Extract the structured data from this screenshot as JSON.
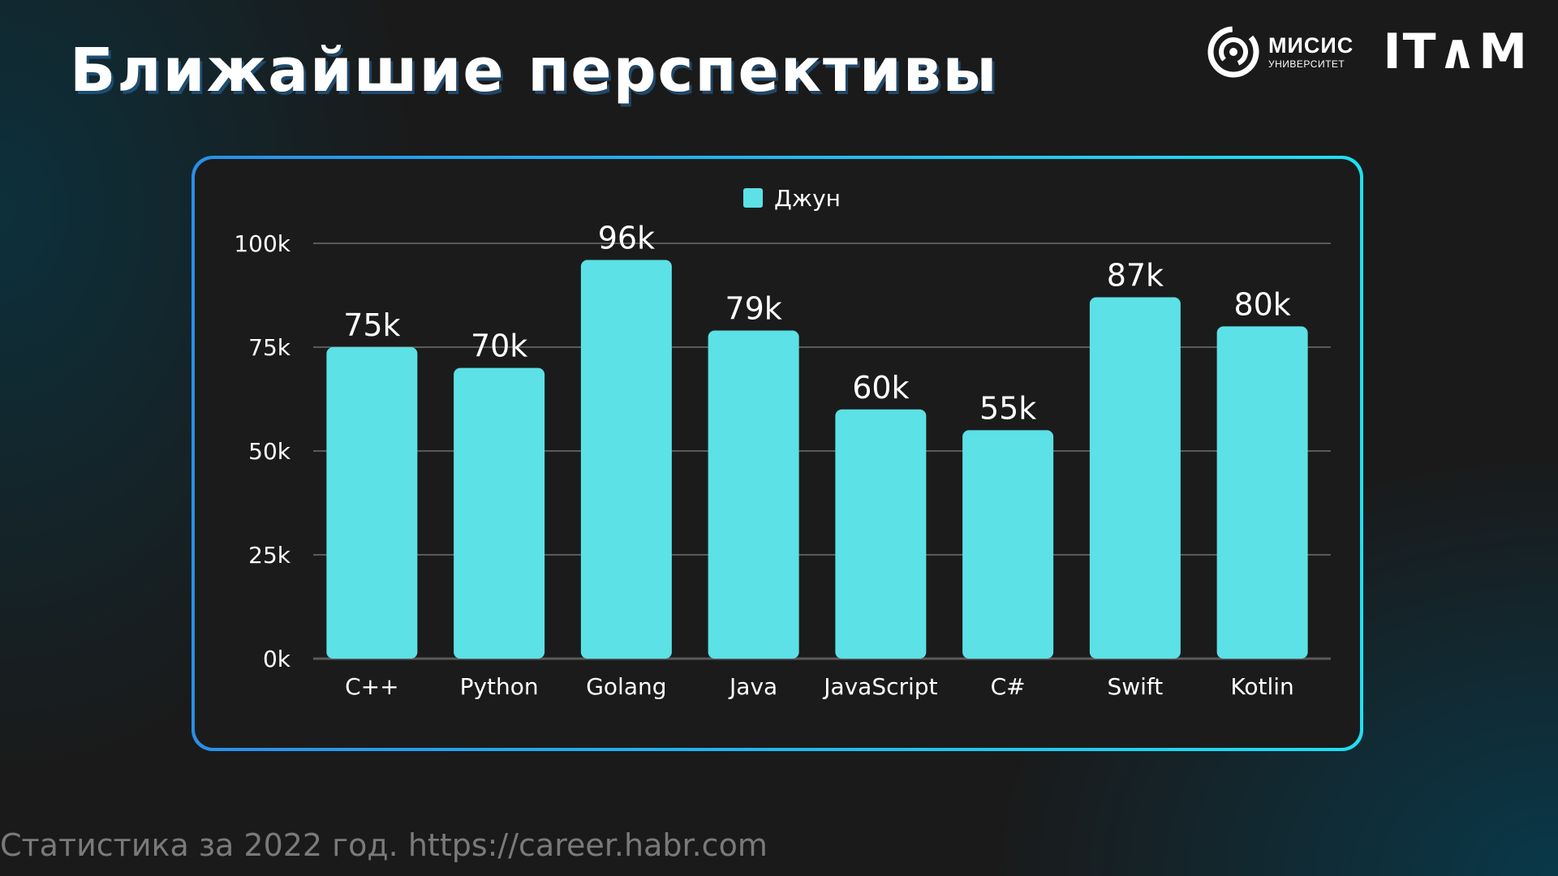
{
  "slide": {
    "title": "Ближайшие перспективы",
    "footer": "Статистика за 2022 год. https://career.habr.com",
    "logos": {
      "misis_name": "МИСИС",
      "misis_sub": "УНИВЕРСИТЕТ",
      "itam": "IT∧M"
    }
  },
  "colors": {
    "bar": "#5ce1e6",
    "grid": "#5a5a5a",
    "text": "#ffffff",
    "frame_start": "#2a8ee8",
    "frame_end": "#1ee0f0"
  },
  "chart_data": {
    "type": "bar",
    "title": "",
    "xlabel": "",
    "ylabel": "",
    "categories": [
      "C++",
      "Python",
      "Golang",
      "Java",
      "JavaScript",
      "C#",
      "Swift",
      "Kotlin"
    ],
    "series": [
      {
        "name": "Джун",
        "values": [
          75,
          70,
          96,
          79,
          60,
          55,
          87,
          80
        ],
        "labels": [
          "75k",
          "70k",
          "96k",
          "79k",
          "60k",
          "55k",
          "87k",
          "80k"
        ]
      }
    ],
    "ylim": [
      0,
      100
    ],
    "yticks": [
      0,
      25,
      50,
      75,
      100
    ],
    "ytick_labels": [
      "0k",
      "25k",
      "50k",
      "75k",
      "100k"
    ],
    "grid": true,
    "legend": "top-center"
  }
}
